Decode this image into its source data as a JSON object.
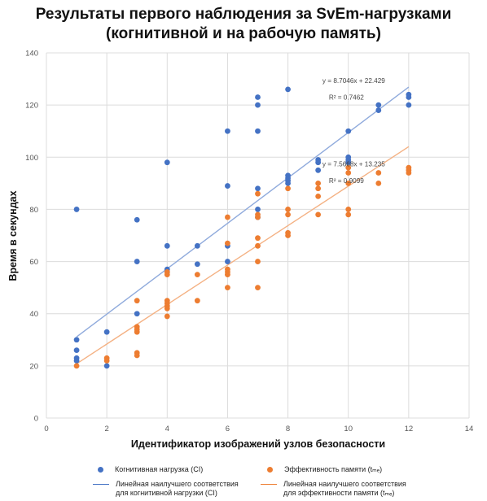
{
  "chart_data": {
    "type": "scatter",
    "title": [
      "Результаты первого наблюдения за SvEm-нагрузками",
      "(когнитивной и на рабочую память)"
    ],
    "xlabel": "Идентификатор изображений узлов безопасности",
    "ylabel": "Время в секундах",
    "xlim": [
      0,
      14
    ],
    "ylim": [
      0,
      140
    ],
    "xticks": [
      0,
      2,
      4,
      6,
      8,
      10,
      12,
      14
    ],
    "yticks": [
      0,
      20,
      40,
      60,
      80,
      100,
      120,
      140
    ],
    "grid": true,
    "series": [
      {
        "name": "Когнитивная нагрузка (CI)",
        "color": "#4472C4",
        "points": [
          [
            1,
            80
          ],
          [
            1,
            30
          ],
          [
            1,
            26
          ],
          [
            1,
            23
          ],
          [
            1,
            22
          ],
          [
            2,
            33
          ],
          [
            2,
            20
          ],
          [
            3,
            76
          ],
          [
            3,
            60
          ],
          [
            3,
            40
          ],
          [
            4,
            98
          ],
          [
            4,
            66
          ],
          [
            4,
            57
          ],
          [
            4,
            56
          ],
          [
            5,
            66
          ],
          [
            5,
            59
          ],
          [
            6,
            110
          ],
          [
            6,
            89
          ],
          [
            6,
            66
          ],
          [
            6,
            60
          ],
          [
            7,
            123
          ],
          [
            7,
            120
          ],
          [
            7,
            110
          ],
          [
            7,
            88
          ],
          [
            7,
            80
          ],
          [
            7,
            77
          ],
          [
            8,
            126
          ],
          [
            8,
            93
          ],
          [
            8,
            92
          ],
          [
            8,
            91
          ],
          [
            8,
            90
          ],
          [
            9,
            99
          ],
          [
            9,
            98
          ],
          [
            9,
            95
          ],
          [
            10,
            110
          ],
          [
            10,
            100
          ],
          [
            10,
            99
          ],
          [
            10,
            98
          ],
          [
            11,
            120
          ],
          [
            11,
            118
          ],
          [
            12,
            124
          ],
          [
            12,
            123
          ],
          [
            12,
            120
          ]
        ],
        "trendline": {
          "slope": 8.7046,
          "intercept": 22.429,
          "equation": "y = 8.7046x + 22.429",
          "r2": "R² = 0.7462"
        }
      },
      {
        "name": "Эффективность памяти (t_me)",
        "color": "#ED7D31",
        "points": [
          [
            1,
            20
          ],
          [
            2,
            23
          ],
          [
            2,
            22
          ],
          [
            3,
            45
          ],
          [
            3,
            35
          ],
          [
            3,
            34
          ],
          [
            3,
            33
          ],
          [
            3,
            25
          ],
          [
            3,
            24
          ],
          [
            4,
            56
          ],
          [
            4,
            55
          ],
          [
            4,
            45
          ],
          [
            4,
            44
          ],
          [
            4,
            43
          ],
          [
            4,
            42
          ],
          [
            4,
            39
          ],
          [
            5,
            55
          ],
          [
            5,
            45
          ],
          [
            6,
            77
          ],
          [
            6,
            67
          ],
          [
            6,
            57
          ],
          [
            6,
            56
          ],
          [
            6,
            55
          ],
          [
            6,
            50
          ],
          [
            7,
            86
          ],
          [
            7,
            78
          ],
          [
            7,
            77
          ],
          [
            7,
            69
          ],
          [
            7,
            66
          ],
          [
            7,
            60
          ],
          [
            7,
            50
          ],
          [
            8,
            88
          ],
          [
            8,
            80
          ],
          [
            8,
            78
          ],
          [
            8,
            71
          ],
          [
            8,
            70
          ],
          [
            9,
            90
          ],
          [
            9,
            88
          ],
          [
            9,
            85
          ],
          [
            9,
            78
          ],
          [
            10,
            96
          ],
          [
            10,
            94
          ],
          [
            10,
            90
          ],
          [
            10,
            80
          ],
          [
            10,
            78
          ],
          [
            11,
            94
          ],
          [
            11,
            90
          ],
          [
            12,
            96
          ],
          [
            12,
            95
          ],
          [
            12,
            94
          ]
        ],
        "trendline": {
          "slope": 7.5668,
          "intercept": 13.235,
          "equation": "y = 7.5668x + 13.235",
          "r2": "R² = 0.9099"
        }
      }
    ]
  },
  "legend": {
    "ci_points": "Когнитивная нагрузка (CI)",
    "me_points": "Эффективность памяти (tₘₑ)",
    "ci_line": "Линейная наилучшего соответствия\nдля когнитивной нагрузки (CI)",
    "me_line": "Линейная наилучшего соответствия\nдля эффективности памяти (tₘₑ)"
  }
}
